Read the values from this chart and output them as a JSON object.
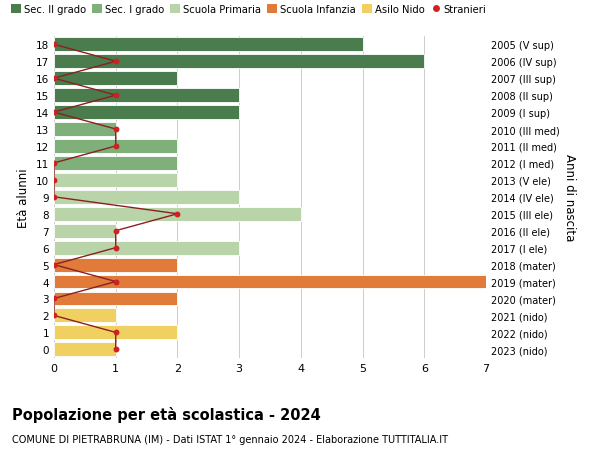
{
  "ages": [
    18,
    17,
    16,
    15,
    14,
    13,
    12,
    11,
    10,
    9,
    8,
    7,
    6,
    5,
    4,
    3,
    2,
    1,
    0
  ],
  "right_labels": [
    "2005 (V sup)",
    "2006 (IV sup)",
    "2007 (III sup)",
    "2008 (II sup)",
    "2009 (I sup)",
    "2010 (III med)",
    "2011 (II med)",
    "2012 (I med)",
    "2013 (V ele)",
    "2014 (IV ele)",
    "2015 (III ele)",
    "2016 (II ele)",
    "2017 (I ele)",
    "2018 (mater)",
    "2019 (mater)",
    "2020 (mater)",
    "2021 (nido)",
    "2022 (nido)",
    "2023 (nido)"
  ],
  "bar_values": [
    5,
    6,
    2,
    3,
    3,
    1,
    2,
    2,
    2,
    3,
    4,
    1,
    3,
    2,
    7,
    2,
    1,
    2,
    1
  ],
  "bar_colors": [
    "#4a7c4e",
    "#4a7c4e",
    "#4a7c4e",
    "#4a7c4e",
    "#4a7c4e",
    "#7fb07a",
    "#7fb07a",
    "#7fb07a",
    "#b8d4a8",
    "#b8d4a8",
    "#b8d4a8",
    "#b8d4a8",
    "#b8d4a8",
    "#e07b3a",
    "#e07b3a",
    "#e07b3a",
    "#f0d060",
    "#f0d060",
    "#f0d060"
  ],
  "stranieri_values": [
    0,
    1,
    0,
    1,
    0,
    1,
    1,
    0,
    0,
    0,
    2,
    1,
    1,
    0,
    1,
    0,
    0,
    1,
    1
  ],
  "legend_labels": [
    "Sec. II grado",
    "Sec. I grado",
    "Scuola Primaria",
    "Scuola Infanzia",
    "Asilo Nido",
    "Stranieri"
  ],
  "legend_colors": [
    "#4a7c4e",
    "#7fb07a",
    "#b8d4a8",
    "#e07b3a",
    "#f0d060",
    "#cc2222"
  ],
  "title": "Popolazione per età scolastica - 2024",
  "subtitle": "COMUNE DI PIETRABRUNA (IM) - Dati ISTAT 1° gennaio 2024 - Elaborazione TUTTITALIA.IT",
  "ylabel": "Età alunni",
  "right_ylabel": "Anni di nascita",
  "xlim": [
    0,
    7
  ],
  "ylim": [
    -0.5,
    18.5
  ],
  "background_color": "#ffffff",
  "grid_color": "#cccccc",
  "stranieri_line_color": "#8b2020",
  "stranieri_dot_color": "#cc2222",
  "bar_height": 0.82
}
